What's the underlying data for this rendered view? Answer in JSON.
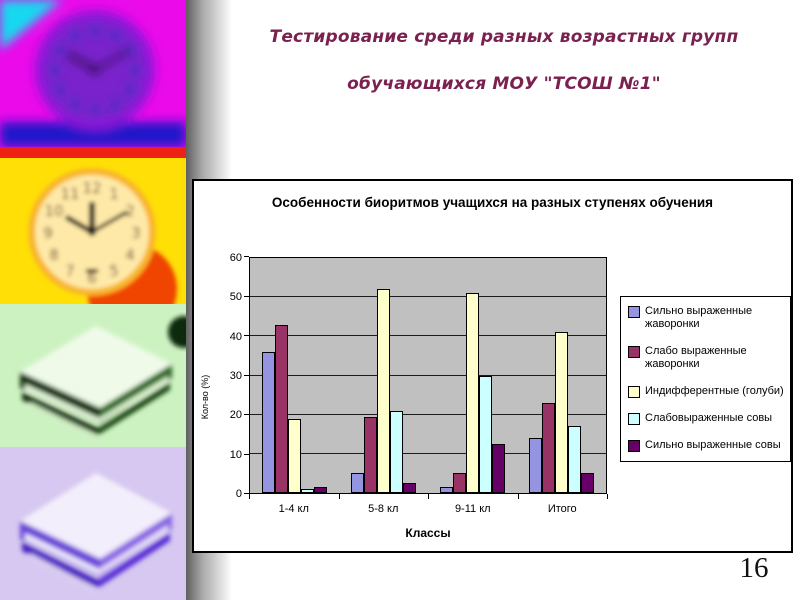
{
  "slide": {
    "title_line1": "Тестирование среди разных возрастных групп",
    "title_line2": "обучающихся  МОУ \"ТСОШ №1\"",
    "title_color": "#7b2150",
    "page_number": "16"
  },
  "left_images": {
    "image1": "psychedelic-clock-photo",
    "image2": "orange-clock-photo",
    "image3": "green-paper-stack-photo",
    "image4": "purple-paper-stack-photo"
  },
  "chart_data": {
    "type": "bar",
    "title": "Особенности биоритмов учащихся на разных ступенях обучения",
    "xlabel": "Классы",
    "ylabel": "Кол-во (%)",
    "ylim": [
      0,
      60
    ],
    "ytick_step": 10,
    "grid": true,
    "plot_background": "#c0c0c0",
    "legend_position": "right",
    "categories": [
      "1-4 кл",
      "5-8 кл",
      "9-11 кл",
      "Итого"
    ],
    "series": [
      {
        "name": "Сильно выраженные жаворонки",
        "color": "#9494e0",
        "values": [
          36,
          5,
          1.5,
          14
        ]
      },
      {
        "name": "Слабо выраженные жаворонки",
        "color": "#993366",
        "values": [
          43,
          19.5,
          5,
          23
        ]
      },
      {
        "name": "Индифферентные (голуби)",
        "color": "#ffffcc",
        "values": [
          19,
          52,
          51,
          41
        ]
      },
      {
        "name": "Слабовыраженные совы",
        "color": "#ccffff",
        "values": [
          1,
          21,
          30,
          17
        ]
      },
      {
        "name": "Сильно выраженные совы",
        "color": "#660066",
        "values": [
          1.5,
          2.5,
          12.5,
          5
        ]
      }
    ]
  }
}
